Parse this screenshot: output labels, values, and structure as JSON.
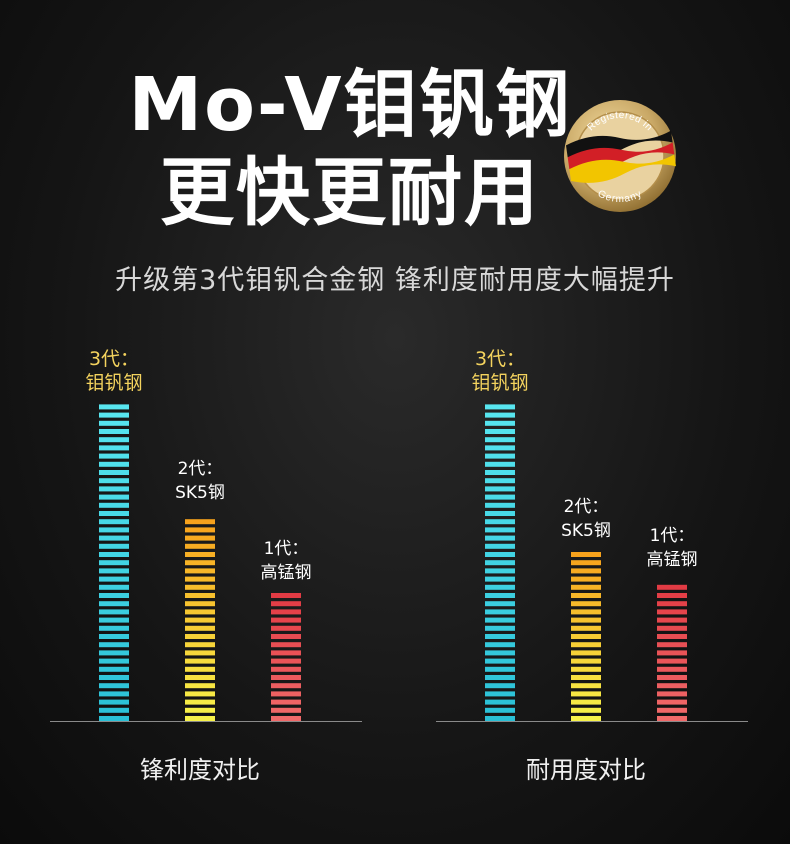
{
  "header": {
    "title_line1": "Mo-V钼钒钢",
    "title_line2": "更快更耐用",
    "subtitle": "升级第3代钼钒合金钢 锋利度耐用度大幅提升"
  },
  "badge": {
    "text_top": "Registered in",
    "text_bottom": "Germany",
    "flag_colors": [
      "#111111",
      "#d21f26",
      "#f2c500"
    ],
    "ring_color": "#c9a866"
  },
  "chart_data": [
    {
      "type": "bar",
      "caption": "锋利度对比",
      "categories": [
        "3代：钼钒钢",
        "2代：SK5钢",
        "1代：高锰钢"
      ],
      "label_lines": [
        [
          "3代：",
          "钼钒钢"
        ],
        [
          "2代：",
          "SK5钢"
        ],
        [
          "1代：",
          "高锰钢"
        ]
      ],
      "values": [
        100,
        66,
        41
      ],
      "ylim": [
        0,
        100
      ],
      "bar_colors": [
        [
          "#58e6f0",
          "#2ac0d6"
        ],
        [
          "#f7a21c",
          "#f7f24a"
        ],
        [
          "#e23b44",
          "#f06a6a"
        ]
      ],
      "label_highlight": [
        true,
        false,
        false
      ]
    },
    {
      "type": "bar",
      "caption": "耐用度对比",
      "categories": [
        "3代：钼钒钢",
        "2代：SK5钢",
        "1代：高锰钢"
      ],
      "label_lines": [
        [
          "3代：",
          "钼钒钢"
        ],
        [
          "2代：",
          "SK5钢"
        ],
        [
          "1代：",
          "高锰钢"
        ]
      ],
      "values": [
        100,
        54,
        45
      ],
      "ylim": [
        0,
        100
      ],
      "bar_colors": [
        [
          "#58e6f0",
          "#2ac0d6"
        ],
        [
          "#f7a21c",
          "#f7f24a"
        ],
        [
          "#e23b44",
          "#f06a6a"
        ]
      ],
      "label_highlight": [
        true,
        false,
        false
      ]
    }
  ],
  "colors": {
    "highlight_label": "#f4d35e",
    "normal_label": "#ffffff",
    "baseline": "#8a8a8a"
  }
}
